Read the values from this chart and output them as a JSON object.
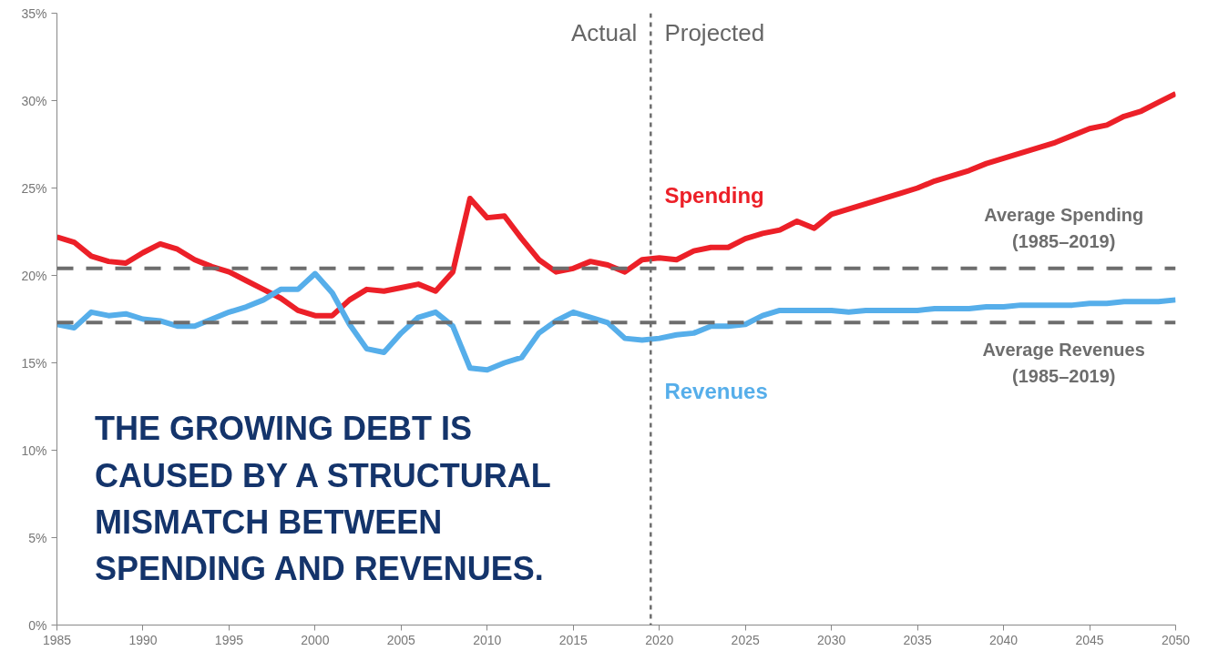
{
  "chart_data": {
    "type": "line",
    "x": [
      1985,
      1986,
      1987,
      1988,
      1989,
      1990,
      1991,
      1992,
      1993,
      1994,
      1995,
      1996,
      1997,
      1998,
      1999,
      2000,
      2001,
      2002,
      2003,
      2004,
      2005,
      2006,
      2007,
      2008,
      2009,
      2010,
      2011,
      2012,
      2013,
      2014,
      2015,
      2016,
      2017,
      2018,
      2019,
      2020,
      2021,
      2022,
      2023,
      2024,
      2025,
      2026,
      2027,
      2028,
      2029,
      2030,
      2031,
      2032,
      2033,
      2034,
      2035,
      2036,
      2037,
      2038,
      2039,
      2040,
      2041,
      2042,
      2043,
      2044,
      2045,
      2046,
      2047,
      2048,
      2049,
      2050
    ],
    "series": [
      {
        "name": "Spending",
        "color": "#ec2028",
        "values": [
          22.2,
          21.9,
          21.1,
          20.8,
          20.7,
          21.3,
          21.8,
          21.5,
          20.9,
          20.5,
          20.2,
          19.7,
          19.2,
          18.7,
          18.0,
          17.7,
          17.7,
          18.6,
          19.2,
          19.1,
          19.3,
          19.5,
          19.1,
          20.2,
          24.4,
          23.3,
          23.4,
          22.1,
          20.9,
          20.2,
          20.4,
          20.8,
          20.6,
          20.2,
          20.9,
          21.0,
          20.9,
          21.4,
          21.6,
          21.6,
          22.1,
          22.4,
          22.6,
          23.1,
          22.7,
          23.5,
          23.8,
          24.1,
          24.4,
          24.7,
          25.0,
          25.4,
          25.7,
          26.0,
          26.4,
          26.7,
          27.0,
          27.3,
          27.6,
          28.0,
          28.4,
          28.6,
          29.1,
          29.4,
          29.9,
          30.4
        ]
      },
      {
        "name": "Revenues",
        "color": "#56aeea",
        "values": [
          17.2,
          17.0,
          17.9,
          17.7,
          17.8,
          17.5,
          17.4,
          17.1,
          17.1,
          17.5,
          17.9,
          18.2,
          18.6,
          19.2,
          19.2,
          20.1,
          19.0,
          17.2,
          15.8,
          15.6,
          16.7,
          17.6,
          17.9,
          17.1,
          14.7,
          14.6,
          15.0,
          15.3,
          16.7,
          17.4,
          17.9,
          17.6,
          17.3,
          16.4,
          16.3,
          16.4,
          16.6,
          16.7,
          17.1,
          17.1,
          17.2,
          17.7,
          18.0,
          18.0,
          18.0,
          18.0,
          17.9,
          18.0,
          18.0,
          18.0,
          18.0,
          18.1,
          18.1,
          18.1,
          18.2,
          18.2,
          18.3,
          18.3,
          18.3,
          18.3,
          18.4,
          18.4,
          18.5,
          18.5,
          18.5,
          18.6
        ]
      }
    ],
    "xlim": [
      1985,
      2050
    ],
    "ylim": [
      0,
      35
    ],
    "xticks": [
      1985,
      1990,
      1995,
      2000,
      2005,
      2010,
      2015,
      2020,
      2025,
      2030,
      2035,
      2040,
      2045,
      2050
    ],
    "yticks": [
      {
        "value": 0,
        "label": "0%"
      },
      {
        "value": 5,
        "label": "5%"
      },
      {
        "value": 10,
        "label": "10%"
      },
      {
        "value": 15,
        "label": "15%"
      },
      {
        "value": 20,
        "label": "20%"
      },
      {
        "value": 25,
        "label": "25%"
      },
      {
        "value": 30,
        "label": "30%"
      },
      {
        "value": 35,
        "label": "35%"
      }
    ],
    "ref_lines": [
      {
        "axis": "y",
        "value": 20.4,
        "label": "Average Spending\n(1985–2019)",
        "color": "#6d6d6d",
        "line_style": "dashed"
      },
      {
        "axis": "y",
        "value": 17.3,
        "label": "Average Revenues\n(1985–2019)",
        "color": "#6d6d6d",
        "line_style": "dashed"
      },
      {
        "axis": "x",
        "value": 2019.5,
        "label": null,
        "color": "#6d6d6d",
        "line_style": "dotted"
      }
    ],
    "annotations": [
      "Actual",
      "Projected",
      "THE GROWING DEBT IS CAUSED BY A STRUCTURAL MISMATCH BETWEEN SPENDING AND REVENUES."
    ],
    "grid": false,
    "line_style": "solid",
    "marker": "none"
  }
}
